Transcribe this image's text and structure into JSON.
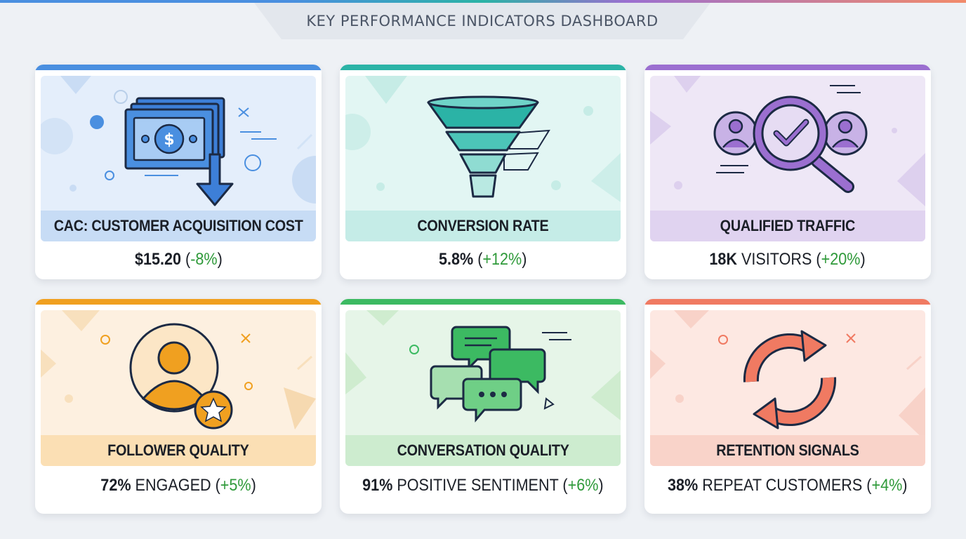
{
  "header": {
    "title": "KEY PERFORMANCE INDICATORS DASHBOARD"
  },
  "cards": [
    {
      "label": "CAC: CUSTOMER ACQUISITION COST",
      "value": "$15.20",
      "unit": "",
      "change": "-8%",
      "accent": "#4a8fe0",
      "icon": "money-down-icon"
    },
    {
      "label": "CONVERSION RATE",
      "value": "5.8%",
      "unit": "",
      "change": "+12%",
      "accent": "#2bb3a6",
      "icon": "funnel-icon"
    },
    {
      "label": "QUALIFIED TRAFFIC",
      "value": "18K",
      "unit": "VISITORS",
      "change": "+20%",
      "accent": "#9b6fd0",
      "icon": "magnifier-check-users-icon"
    },
    {
      "label": "FOLLOWER QUALITY",
      "value": "72%",
      "unit": "ENGAGED",
      "change": "+5%",
      "accent": "#f0a020",
      "icon": "user-star-icon"
    },
    {
      "label": "CONVERSATION QUALITY",
      "value": "91%",
      "unit": "POSITIVE SENTIMENT",
      "change": "+6%",
      "accent": "#3cba62",
      "icon": "chat-bubbles-icon"
    },
    {
      "label": "RETENTION SIGNALS",
      "value": "38%",
      "unit": "REPEAT CUSTOMERS",
      "change": "+4%",
      "accent": "#f07a62",
      "icon": "refresh-arrows-icon"
    }
  ]
}
